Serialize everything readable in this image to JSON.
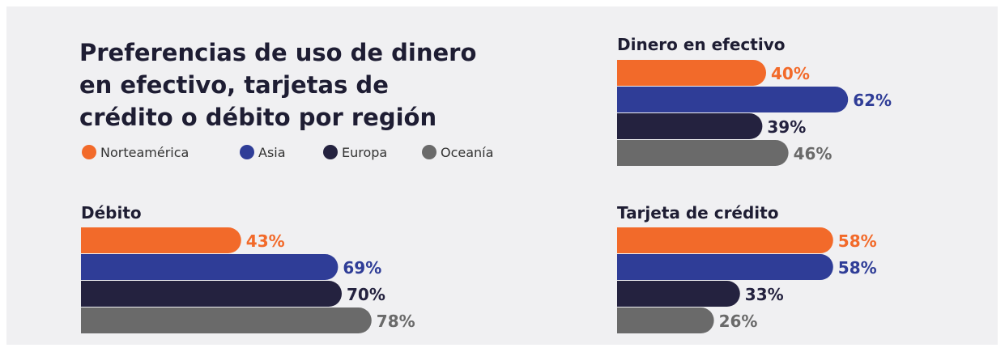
{
  "title": [
    "Preferencias de uso de dinero",
    "en efectivo, tarjetas de",
    "crédito o débito por región"
  ],
  "legend": [
    {
      "name": "Norteamérica",
      "color": "#f26a2a"
    },
    {
      "name": "Asia",
      "color": "#2f3d97"
    },
    {
      "name": "Europa",
      "color": "#24223f"
    },
    {
      "name": "Oceanía",
      "color": "#6a6a6a"
    }
  ],
  "chart_data": [
    {
      "type": "bar",
      "title": "Dinero en efectivo",
      "values": [
        40,
        62,
        39,
        46
      ],
      "value_labels": [
        "40%",
        "62%",
        "39%",
        "46%"
      ]
    },
    {
      "type": "bar",
      "title": "Débito",
      "values": [
        43,
        69,
        70,
        78
      ],
      "value_labels": [
        "43%",
        "69%",
        "70%",
        "78%"
      ]
    },
    {
      "type": "bar",
      "title": "Tarjeta de crédito",
      "values": [
        58,
        58,
        33,
        26
      ],
      "value_labels": [
        "58%",
        "58%",
        "33%",
        "26%"
      ]
    }
  ]
}
